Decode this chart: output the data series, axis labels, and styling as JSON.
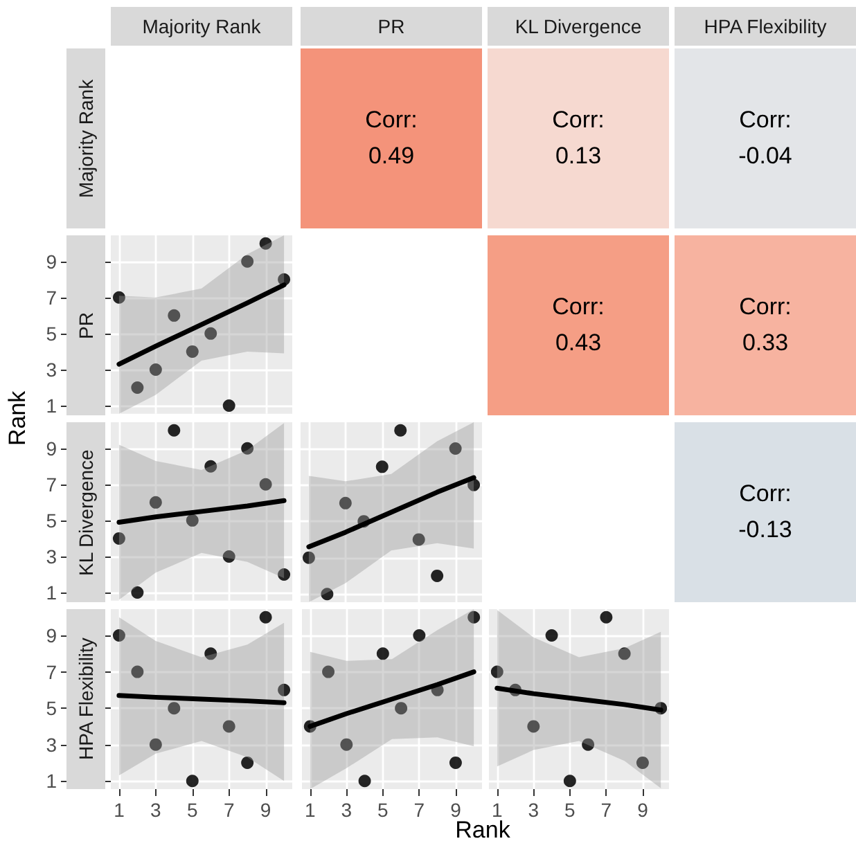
{
  "chart_data": [
    {
      "type": "other",
      "xlabel": "Rank",
      "ylabel": "Rank",
      "categories": [
        "Majority Rank",
        "PR",
        "KL Divergence",
        "HPA Flexibility"
      ]
    },
    {
      "type": "other",
      "annotations": [
        "Corr:",
        "0.49"
      ],
      "color": "#f4937a"
    },
    {
      "type": "other",
      "annotations": [
        "Corr:",
        "0.13"
      ],
      "color": "#f6d9d0"
    },
    {
      "type": "other",
      "annotations": [
        "Corr:",
        "-0.04"
      ],
      "color": "#e3e5e8"
    },
    {
      "type": "scatter",
      "xlim": [
        0.55,
        10.45
      ],
      "ylim": [
        0.55,
        10.45
      ],
      "xticks": [
        1,
        3,
        5,
        7,
        9
      ],
      "yticks": [
        1,
        3,
        5,
        7,
        9
      ],
      "grid": true,
      "marker": "circle",
      "tick_labels": "y",
      "series": [
        {
          "x": [
            1,
            2,
            3,
            4,
            5,
            6,
            7,
            8,
            9,
            10
          ],
          "values": [
            7,
            2,
            3,
            6,
            4,
            5,
            1,
            9,
            10,
            8
          ],
          "color": "#000000"
        },
        {
          "type": "line",
          "marker": "none",
          "x": [
            1,
            3,
            5.5,
            8,
            10
          ],
          "values": [
            3.3,
            4.3,
            5.5,
            6.7,
            7.7
          ],
          "lower": [
            0.55,
            1.6,
            3.5,
            4.0,
            3.9
          ],
          "upper": [
            7.1,
            7.0,
            7.5,
            9.4,
            10.45
          ],
          "color": "#000000"
        }
      ]
    },
    {
      "type": "other",
      "annotations": [
        "Corr:",
        "0.43"
      ],
      "color": "#f59e85"
    },
    {
      "type": "other",
      "annotations": [
        "Corr:",
        "0.33"
      ],
      "color": "#f7b3a0"
    },
    {
      "type": "scatter",
      "xlim": [
        0.55,
        10.45
      ],
      "ylim": [
        0.55,
        10.45
      ],
      "xticks": [
        1,
        3,
        5,
        7,
        9
      ],
      "yticks": [
        1,
        3,
        5,
        7,
        9
      ],
      "grid": true,
      "marker": "circle",
      "tick_labels": "y",
      "series": [
        {
          "x": [
            1,
            2,
            3,
            4,
            5,
            6,
            7,
            8,
            9,
            10
          ],
          "values": [
            4,
            1,
            6,
            10,
            5,
            8,
            3,
            9,
            7,
            2
          ],
          "color": "#000000"
        },
        {
          "type": "line",
          "marker": "none",
          "x": [
            1,
            3,
            5.5,
            8,
            10
          ],
          "values": [
            4.9,
            5.2,
            5.5,
            5.8,
            6.1
          ],
          "lower": [
            0.6,
            2.1,
            3.2,
            2.7,
            1.8
          ],
          "upper": [
            9.2,
            8.3,
            7.8,
            8.9,
            10.4
          ],
          "color": "#000000"
        }
      ]
    },
    {
      "type": "scatter",
      "xlim": [
        0.55,
        10.45
      ],
      "ylim": [
        0.55,
        10.45
      ],
      "xticks": [
        1,
        3,
        5,
        7,
        9
      ],
      "yticks": [
        1,
        3,
        5,
        7,
        9
      ],
      "grid": true,
      "marker": "circle",
      "tick_labels": false,
      "series": [
        {
          "x": [
            1,
            2,
            3,
            4,
            5,
            6,
            7,
            8,
            9,
            10
          ],
          "values": [
            3,
            1,
            6,
            5,
            8,
            10,
            4,
            2,
            9,
            7
          ],
          "color": "#000000"
        },
        {
          "type": "line",
          "marker": "none",
          "x": [
            1,
            3,
            5.5,
            8,
            10
          ],
          "values": [
            3.6,
            4.4,
            5.5,
            6.6,
            7.4
          ],
          "lower": [
            0.55,
            1.6,
            3.4,
            3.8,
            3.5
          ],
          "upper": [
            7.5,
            7.2,
            7.6,
            9.4,
            10.45
          ],
          "color": "#000000"
        }
      ]
    },
    {
      "type": "other",
      "annotations": [
        "Corr:",
        "-0.13"
      ],
      "color": "#d9e0e6"
    },
    {
      "type": "scatter",
      "xlim": [
        0.55,
        10.45
      ],
      "ylim": [
        0.55,
        10.45
      ],
      "xticks": [
        1,
        3,
        5,
        7,
        9
      ],
      "yticks": [
        1,
        3,
        5,
        7,
        9
      ],
      "grid": true,
      "marker": "circle",
      "series": [
        {
          "x": [
            1,
            2,
            3,
            4,
            5,
            6,
            7,
            8,
            9,
            10
          ],
          "values": [
            9,
            7,
            3,
            5,
            1,
            8,
            4,
            2,
            10,
            6
          ],
          "color": "#000000"
        },
        {
          "type": "line",
          "marker": "none",
          "x": [
            1,
            3,
            5.5,
            8,
            10
          ],
          "values": [
            5.7,
            5.6,
            5.5,
            5.4,
            5.3
          ],
          "lower": [
            1.3,
            2.5,
            3.2,
            2.3,
            1.0
          ],
          "upper": [
            10.0,
            8.7,
            7.8,
            8.5,
            9.7
          ],
          "color": "#000000"
        }
      ]
    },
    {
      "type": "scatter",
      "xlim": [
        0.55,
        10.45
      ],
      "ylim": [
        0.55,
        10.45
      ],
      "xticks": [
        1,
        3,
        5,
        7,
        9
      ],
      "yticks": [
        1,
        3,
        5,
        7,
        9
      ],
      "grid": true,
      "marker": "circle",
      "tick_labels": "x",
      "series": [
        {
          "x": [
            1,
            2,
            3,
            4,
            5,
            6,
            7,
            8,
            9,
            10
          ],
          "values": [
            4,
            7,
            3,
            1,
            8,
            5,
            9,
            6,
            2,
            10
          ],
          "color": "#000000"
        },
        {
          "type": "line",
          "marker": "none",
          "x": [
            1,
            3,
            5.5,
            8,
            10
          ],
          "values": [
            4.0,
            4.7,
            5.5,
            6.3,
            7.0
          ],
          "lower": [
            0.55,
            1.7,
            3.3,
            3.4,
            2.9
          ],
          "upper": [
            8.1,
            7.6,
            7.7,
            9.3,
            10.45
          ],
          "color": "#000000"
        }
      ]
    },
    {
      "type": "scatter",
      "xlim": [
        0.55,
        10.45
      ],
      "ylim": [
        0.55,
        10.45
      ],
      "xticks": [
        1,
        3,
        5,
        7,
        9
      ],
      "yticks": [
        1,
        3,
        5,
        7,
        9
      ],
      "grid": true,
      "marker": "circle",
      "tick_labels": "x",
      "series": [
        {
          "x": [
            1,
            2,
            3,
            4,
            5,
            6,
            7,
            8,
            9,
            10
          ],
          "values": [
            7,
            6,
            4,
            9,
            1,
            3,
            10,
            8,
            2,
            5
          ],
          "color": "#000000"
        },
        {
          "type": "line",
          "marker": "none",
          "x": [
            1,
            3,
            5.5,
            8,
            10
          ],
          "values": [
            6.1,
            5.8,
            5.5,
            5.2,
            4.9
          ],
          "lower": [
            1.8,
            2.7,
            3.2,
            2.1,
            0.6
          ],
          "upper": [
            10.4,
            8.9,
            7.8,
            8.3,
            9.2
          ],
          "color": "#000000"
        }
      ]
    }
  ]
}
